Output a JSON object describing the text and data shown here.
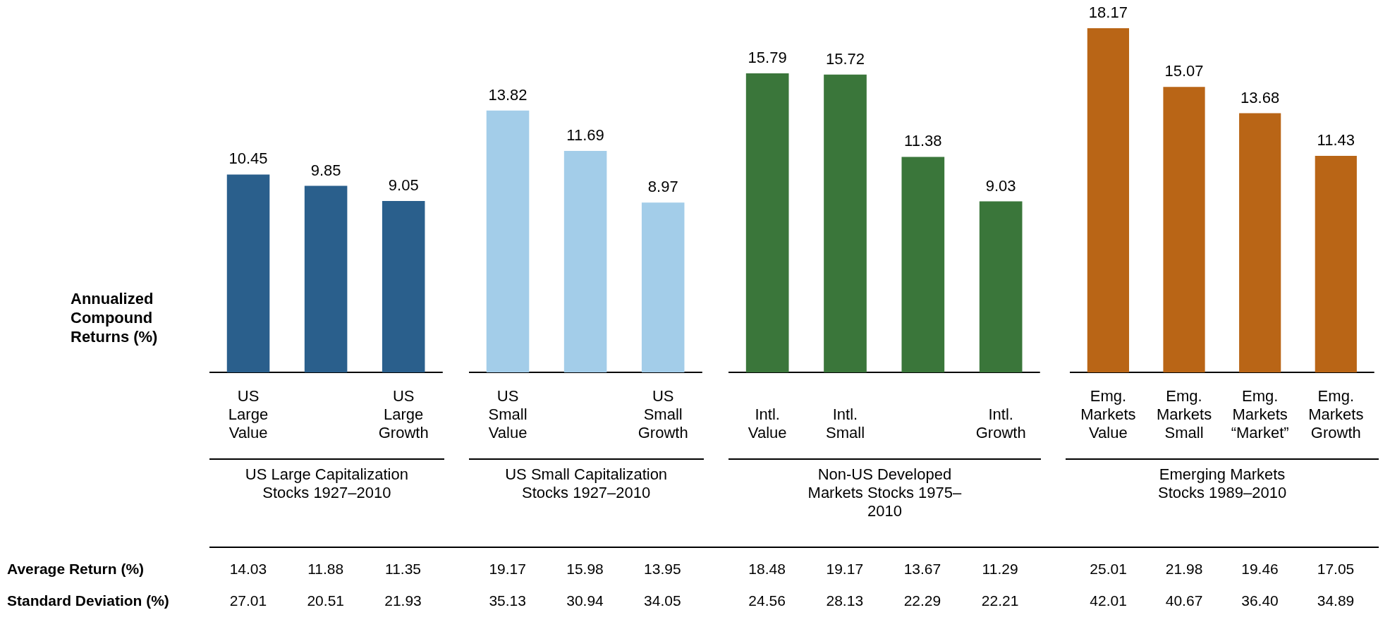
{
  "chart_data": [
    {
      "type": "bar",
      "ylabel": "Annualized Compound Returns (%)",
      "xlabel": "US Large Capitalization Stocks 1927–2010",
      "categories": [
        "US Large Value",
        null,
        "US Large Growth"
      ],
      "values": [
        10.45,
        9.85,
        9.05
      ],
      "color": "#2a5f8c",
      "tick_labels": "x",
      "data_labels": true
    },
    {
      "type": "bar",
      "xlabel": "US Small Capitalization Stocks 1927–2010",
      "categories": [
        "US Small Value",
        null,
        "US Small Growth"
      ],
      "values": [
        13.82,
        11.69,
        8.97
      ],
      "color": "#a3cde9",
      "tick_labels": "x",
      "data_labels": true
    },
    {
      "type": "bar",
      "xlabel": "Non-US Developed Markets Stocks 1975–2010",
      "categories": [
        "Intl. Value",
        "Intl. Small",
        null,
        "Intl. Growth"
      ],
      "values": [
        15.79,
        15.72,
        11.38,
        9.03
      ],
      "color": "#3a763a",
      "tick_labels": "x",
      "data_labels": true
    },
    {
      "type": "bar",
      "xlabel": "Emerging Markets Stocks 1989–2010",
      "categories": [
        "Emg. Markets Value",
        "Emg. Markets Small",
        "Emg. Markets “Market”",
        "Emg. Markets Growth"
      ],
      "values": [
        18.17,
        15.07,
        13.68,
        11.43
      ],
      "color": "#b96516",
      "tick_labels": "x",
      "data_labels": true
    },
    {
      "type": "other",
      "y_categories": [
        "Average Return (%)",
        "Standard Deviation (%)"
      ],
      "annotations": [
        "14.03",
        "11.88",
        "11.35",
        "19.17",
        "15.98",
        "13.95",
        "18.48",
        "19.17",
        "13.67",
        "11.29",
        "25.01",
        "21.98",
        "19.46",
        "17.05",
        "27.01",
        "20.51",
        "21.93",
        "35.13",
        "30.94",
        "34.05",
        "24.56",
        "28.13",
        "22.29",
        "22.21",
        "42.01",
        "40.67",
        "36.40",
        "34.89"
      ]
    }
  ]
}
